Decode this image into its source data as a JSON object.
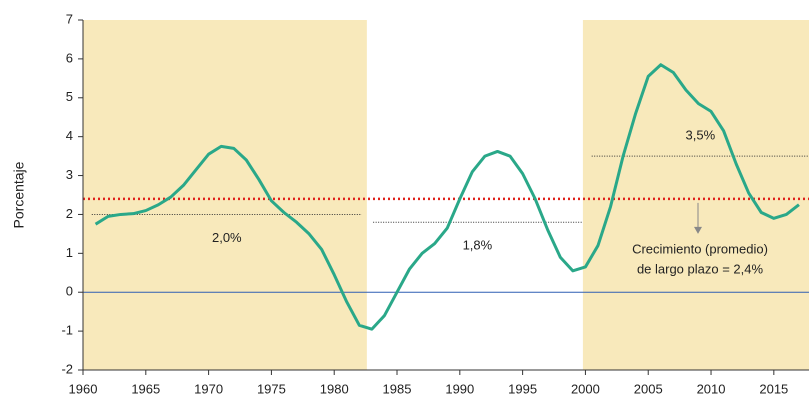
{
  "chart_data": {
    "type": "line",
    "y_label": "Porcentaje",
    "x": [
      1961,
      1962,
      1963,
      1964,
      1965,
      1966,
      1967,
      1968,
      1969,
      1970,
      1971,
      1972,
      1973,
      1974,
      1975,
      1976,
      1977,
      1978,
      1979,
      1980,
      1981,
      1982,
      1983,
      1984,
      1985,
      1986,
      1987,
      1988,
      1989,
      1990,
      1991,
      1992,
      1993,
      1994,
      1995,
      1996,
      1997,
      1998,
      1999,
      2000,
      2001,
      2002,
      2003,
      2004,
      2005,
      2006,
      2007,
      2008,
      2009,
      2010,
      2011,
      2012,
      2013,
      2014,
      2015,
      2016,
      2017
    ],
    "series": [
      {
        "color": "#2aa889",
        "values": [
          1.75,
          1.95,
          2.0,
          2.02,
          2.1,
          2.25,
          2.45,
          2.75,
          3.15,
          3.55,
          3.75,
          3.7,
          3.4,
          2.9,
          2.35,
          2.05,
          1.8,
          1.5,
          1.1,
          0.45,
          -0.25,
          -0.85,
          -0.95,
          -0.6,
          0.0,
          0.6,
          1.0,
          1.25,
          1.65,
          2.4,
          3.1,
          3.5,
          3.62,
          3.5,
          3.05,
          2.4,
          1.6,
          0.9,
          0.55,
          0.65,
          1.2,
          2.2,
          3.5,
          4.6,
          5.55,
          5.85,
          5.65,
          5.2,
          4.85,
          4.65,
          4.15,
          3.3,
          2.55,
          2.05,
          1.9,
          2.0,
          2.25
        ]
      }
    ],
    "xlim": [
      1960,
      2017.8
    ],
    "ylim": [
      -2,
      7
    ],
    "xticks": [
      1960,
      1965,
      1970,
      1975,
      1980,
      1985,
      1990,
      1995,
      2000,
      2005,
      2010,
      2015
    ],
    "yticks": [
      -2,
      -1,
      0,
      1,
      2,
      3,
      4,
      5,
      6,
      7
    ],
    "shaded_ranges": [
      [
        1960,
        1982.6
      ],
      [
        1999.8,
        2017.8
      ]
    ],
    "shade_color": "#f8e9bb",
    "zero_line_color": "#2f5fb3",
    "averages": [
      {
        "value": 2.0,
        "range": [
          1960.7,
          1982.2
        ],
        "label": "2,0%"
      },
      {
        "value": 1.8,
        "range": [
          1983.1,
          1999.7
        ],
        "label": "1,8%"
      },
      {
        "value": 3.5,
        "range": [
          2000.5,
          2017.8
        ],
        "label": "3,5%"
      }
    ],
    "long_term_average": {
      "value": 2.4,
      "color": "#e0201b",
      "label_lines": [
        "Crecimiento (promedio)",
        "de largo plazo = 2,4%"
      ]
    }
  }
}
